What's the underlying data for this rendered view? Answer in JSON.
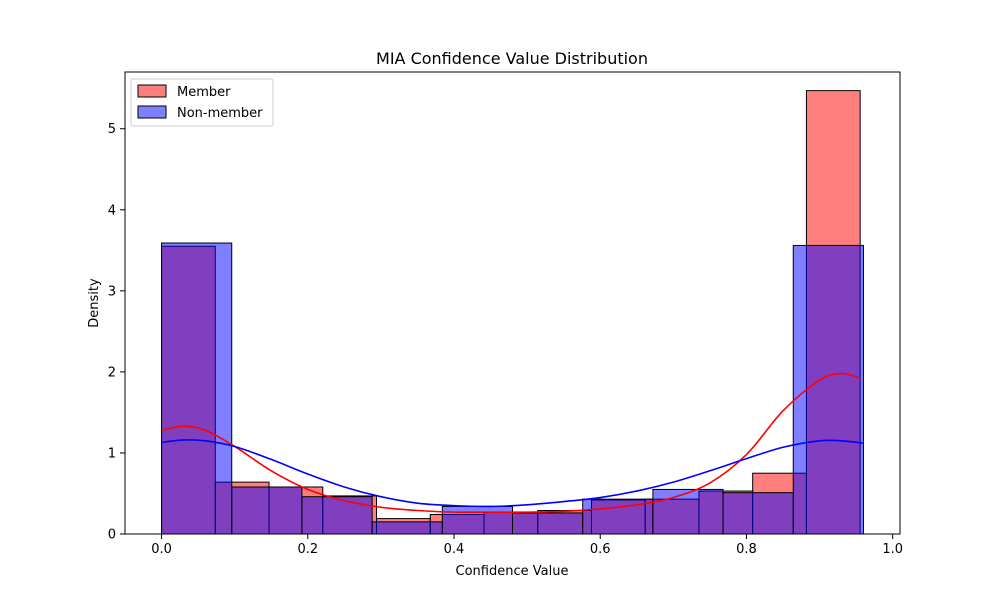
{
  "chart_data": {
    "type": "bar",
    "title": "MIA Confidence Value Distribution",
    "xlabel": "Confidence Value",
    "ylabel": "Density",
    "xlim": [
      -0.05,
      1.01
    ],
    "ylim": [
      0,
      5.7
    ],
    "xticks": [
      0.0,
      0.2,
      0.4,
      0.6,
      0.8,
      1.0
    ],
    "xtick_labels": [
      "0.0",
      "0.2",
      "0.4",
      "0.6",
      "0.8",
      "1.0"
    ],
    "yticks": [
      0,
      1,
      2,
      3,
      4,
      5
    ],
    "ytick_labels": [
      "0",
      "1",
      "2",
      "3",
      "4",
      "5"
    ],
    "grid": false,
    "legend_position": "top-left",
    "series": [
      {
        "name": "Member",
        "color": "#ff0000",
        "bin_edges": [
          0.0,
          0.0735,
          0.147,
          0.2205,
          0.294,
          0.3675,
          0.441,
          0.5145,
          0.588,
          0.6615,
          0.735,
          0.8085,
          0.882,
          0.9555
        ],
        "values": [
          3.55,
          0.64,
          0.58,
          0.47,
          0.19,
          0.24,
          0.27,
          0.29,
          0.42,
          0.43,
          0.53,
          0.75,
          5.47
        ],
        "kde_x": [
          0.0,
          0.03,
          0.06,
          0.1,
          0.15,
          0.2,
          0.25,
          0.3,
          0.35,
          0.4,
          0.45,
          0.5,
          0.55,
          0.6,
          0.65,
          0.7,
          0.75,
          0.8,
          0.85,
          0.9,
          0.93,
          0.9555
        ],
        "kde_y": [
          1.28,
          1.33,
          1.28,
          1.08,
          0.78,
          0.55,
          0.41,
          0.33,
          0.29,
          0.27,
          0.27,
          0.27,
          0.28,
          0.31,
          0.36,
          0.45,
          0.63,
          0.98,
          1.52,
          1.9,
          1.98,
          1.92
        ]
      },
      {
        "name": "Non-member",
        "color": "#0000ff",
        "bin_edges": [
          0.0,
          0.096,
          0.192,
          0.288,
          0.384,
          0.48,
          0.576,
          0.672,
          0.768,
          0.864,
          0.96
        ],
        "values": [
          3.59,
          0.58,
          0.46,
          0.15,
          0.34,
          0.26,
          0.43,
          0.55,
          0.51,
          3.56
        ],
        "kde_x": [
          0.0,
          0.03,
          0.06,
          0.1,
          0.15,
          0.2,
          0.25,
          0.3,
          0.35,
          0.4,
          0.45,
          0.5,
          0.55,
          0.6,
          0.65,
          0.7,
          0.75,
          0.8,
          0.85,
          0.9,
          0.93,
          0.96
        ],
        "kde_y": [
          1.13,
          1.16,
          1.15,
          1.08,
          0.92,
          0.74,
          0.58,
          0.46,
          0.38,
          0.35,
          0.34,
          0.36,
          0.4,
          0.45,
          0.53,
          0.64,
          0.78,
          0.93,
          1.07,
          1.15,
          1.15,
          1.12
        ]
      }
    ]
  }
}
